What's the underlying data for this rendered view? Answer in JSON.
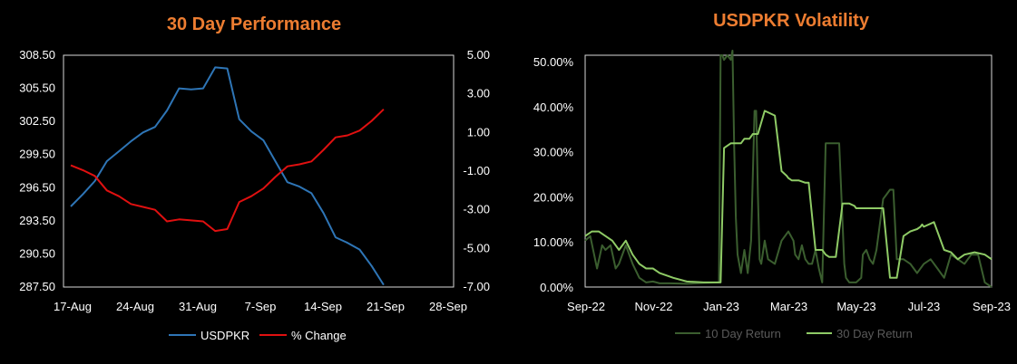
{
  "colors": {
    "background": "#000000",
    "title": "#ED7D31",
    "usdpkr": "#2E75B6",
    "pct_change": "#E01010",
    "ret10": "#3B5E2F",
    "ret30": "#8FCB66",
    "legend_right_text": "#5A5A5A"
  },
  "chart_data": [
    {
      "type": "line",
      "title": "30 Day Performance",
      "x": [
        "17-Aug",
        "18-Aug",
        "21-Aug",
        "22-Aug",
        "23-Aug",
        "24-Aug",
        "25-Aug",
        "28-Aug",
        "29-Aug",
        "30-Aug",
        "31-Aug",
        "1-Sep",
        "4-Sep",
        "5-Sep",
        "6-Sep",
        "7-Sep",
        "8-Sep",
        "11-Sep",
        "12-Sep",
        "13-Sep",
        "14-Sep",
        "15-Sep",
        "18-Sep",
        "19-Sep",
        "20-Sep",
        "21-Sep",
        "22-Sep",
        "25-Sep",
        "26-Sep",
        "27-Sep",
        "28-Sep"
      ],
      "x_tick_labels": [
        "17-Aug",
        "24-Aug",
        "31-Aug",
        "7-Sep",
        "14-Sep",
        "21-Sep",
        "28-Sep"
      ],
      "ylim": [
        287.5,
        308.5
      ],
      "y_tick_labels": [
        "308.50",
        "305.50",
        "302.50",
        "299.50",
        "296.50",
        "293.50",
        "290.50",
        "287.50"
      ],
      "y2lim": [
        -7.0,
        5.0
      ],
      "y2_tick_labels": [
        "5.00",
        "3.00",
        "1.00",
        "-1.00",
        "-3.00",
        "-5.00",
        "-7.00"
      ],
      "legend_position": "bottom",
      "series": [
        {
          "name": "USDPKR",
          "axis": "left",
          "values": [
            294.8,
            295.9,
            297.1,
            298.9,
            299.8,
            300.7,
            301.5,
            302.0,
            303.5,
            305.5,
            305.4,
            305.5,
            307.4,
            307.3,
            302.7,
            301.6,
            300.8,
            298.9,
            297.0,
            296.6,
            296.0,
            294.2,
            292.0,
            291.5,
            290.9,
            289.4,
            287.7,
            null,
            null,
            null,
            null
          ]
        },
        {
          "name": "% Change",
          "axis": "right",
          "values": [
            -0.7,
            -0.95,
            -1.25,
            -2.0,
            -2.3,
            -2.7,
            -2.85,
            -3.0,
            -3.6,
            -3.5,
            -3.55,
            -3.6,
            -4.1,
            -4.0,
            -2.6,
            -2.3,
            -1.9,
            -1.3,
            -0.75,
            -0.65,
            -0.5,
            0.1,
            0.75,
            0.85,
            1.1,
            1.6,
            2.2,
            null,
            null,
            null,
            null
          ]
        }
      ]
    },
    {
      "type": "line",
      "title": "USDPKR Volatility",
      "x_tick_labels": [
        "Sep-22",
        "Nov-22",
        "Jan-23",
        "Mar-23",
        "May-23",
        "Jul-23",
        "Sep-23"
      ],
      "x_range_months": [
        0,
        12
      ],
      "ylim": [
        0,
        0.5
      ],
      "y_tick_labels": [
        "50.00%",
        "40.00%",
        "30.00%",
        "20.00%",
        "10.00%",
        "0.00%"
      ],
      "legend_position": "bottom",
      "series": [
        {
          "name": "10 Day Return",
          "x": [
            0,
            0.15,
            0.35,
            0.5,
            0.6,
            0.75,
            0.9,
            1.0,
            1.2,
            1.4,
            1.6,
            1.8,
            2.0,
            2.2,
            2.5,
            3.0,
            3.5,
            3.95,
            4.0,
            4.05,
            4.1,
            4.2,
            4.3,
            4.35,
            4.4,
            4.45,
            4.5,
            4.6,
            4.7,
            4.8,
            4.9,
            5.0,
            5.05,
            5.1,
            5.15,
            5.2,
            5.3,
            5.4,
            5.6,
            5.8,
            6.0,
            6.15,
            6.2,
            6.3,
            6.4,
            6.5,
            6.6,
            6.7,
            6.8,
            6.9,
            7.0,
            7.1,
            7.2,
            7.3,
            7.5,
            7.6,
            7.65,
            7.7,
            7.8,
            8.0,
            8.15,
            8.2,
            8.3,
            8.4,
            8.5,
            8.6,
            8.8,
            8.9,
            9.0,
            9.1,
            9.2,
            9.4,
            9.6,
            9.8,
            10.0,
            10.2,
            10.4,
            10.6,
            10.8,
            11.0,
            11.2,
            11.4,
            11.6,
            11.8,
            12.0
          ],
          "values": [
            0.1,
            0.11,
            0.04,
            0.09,
            0.08,
            0.09,
            0.04,
            0.05,
            0.09,
            0.05,
            0.02,
            0.01,
            0.012,
            0.008,
            0.008,
            0.007,
            0.009,
            0.01,
            0.5,
            0.5,
            0.49,
            0.5,
            0.49,
            0.51,
            0.3,
            0.15,
            0.07,
            0.03,
            0.08,
            0.03,
            0.1,
            0.38,
            0.38,
            0.2,
            0.06,
            0.05,
            0.1,
            0.06,
            0.05,
            0.1,
            0.12,
            0.1,
            0.07,
            0.06,
            0.09,
            0.06,
            0.05,
            0.05,
            0.08,
            0.04,
            0.01,
            0.31,
            0.31,
            0.31,
            0.31,
            0.14,
            0.05,
            0.02,
            0.01,
            0.01,
            0.02,
            0.07,
            0.08,
            0.06,
            0.05,
            0.08,
            0.19,
            0.2,
            0.21,
            0.21,
            0.06,
            0.06,
            0.05,
            0.03,
            0.05,
            0.06,
            0.04,
            0.02,
            0.07,
            0.06,
            0.05,
            0.07,
            0.07,
            0.01,
            0.0
          ]
        },
        {
          "name": "30 Day Return",
          "x": [
            0,
            0.2,
            0.4,
            0.6,
            0.8,
            1.0,
            1.2,
            1.4,
            1.6,
            1.8,
            2.0,
            2.2,
            2.4,
            2.6,
            3.0,
            3.5,
            3.9,
            4.0,
            4.1,
            4.3,
            4.6,
            4.7,
            4.8,
            4.85,
            4.95,
            5.1,
            5.3,
            5.6,
            5.8,
            5.95,
            6.0,
            6.1,
            6.3,
            6.5,
            6.6,
            6.8,
            7.0,
            7.05,
            7.1,
            7.2,
            7.4,
            7.6,
            7.8,
            7.95,
            8.0,
            8.2,
            8.4,
            8.6,
            8.8,
            9.0,
            9.1,
            9.2,
            9.4,
            9.6,
            9.8,
            9.9,
            9.95,
            10.0,
            10.3,
            10.6,
            10.8,
            11.0,
            11.2,
            11.5,
            11.8,
            12.0
          ],
          "values": [
            0.11,
            0.12,
            0.12,
            0.11,
            0.1,
            0.08,
            0.1,
            0.07,
            0.05,
            0.04,
            0.04,
            0.03,
            0.025,
            0.02,
            0.012,
            0.01,
            0.01,
            0.01,
            0.3,
            0.31,
            0.31,
            0.32,
            0.32,
            0.32,
            0.33,
            0.33,
            0.38,
            0.37,
            0.25,
            0.24,
            0.235,
            0.23,
            0.23,
            0.225,
            0.225,
            0.08,
            0.08,
            0.075,
            0.07,
            0.065,
            0.065,
            0.18,
            0.18,
            0.175,
            0.17,
            0.17,
            0.17,
            0.17,
            0.17,
            0.02,
            0.02,
            0.02,
            0.11,
            0.12,
            0.125,
            0.13,
            0.135,
            0.13,
            0.14,
            0.08,
            0.075,
            0.06,
            0.07,
            0.075,
            0.07,
            0.06
          ]
        }
      ]
    }
  ]
}
